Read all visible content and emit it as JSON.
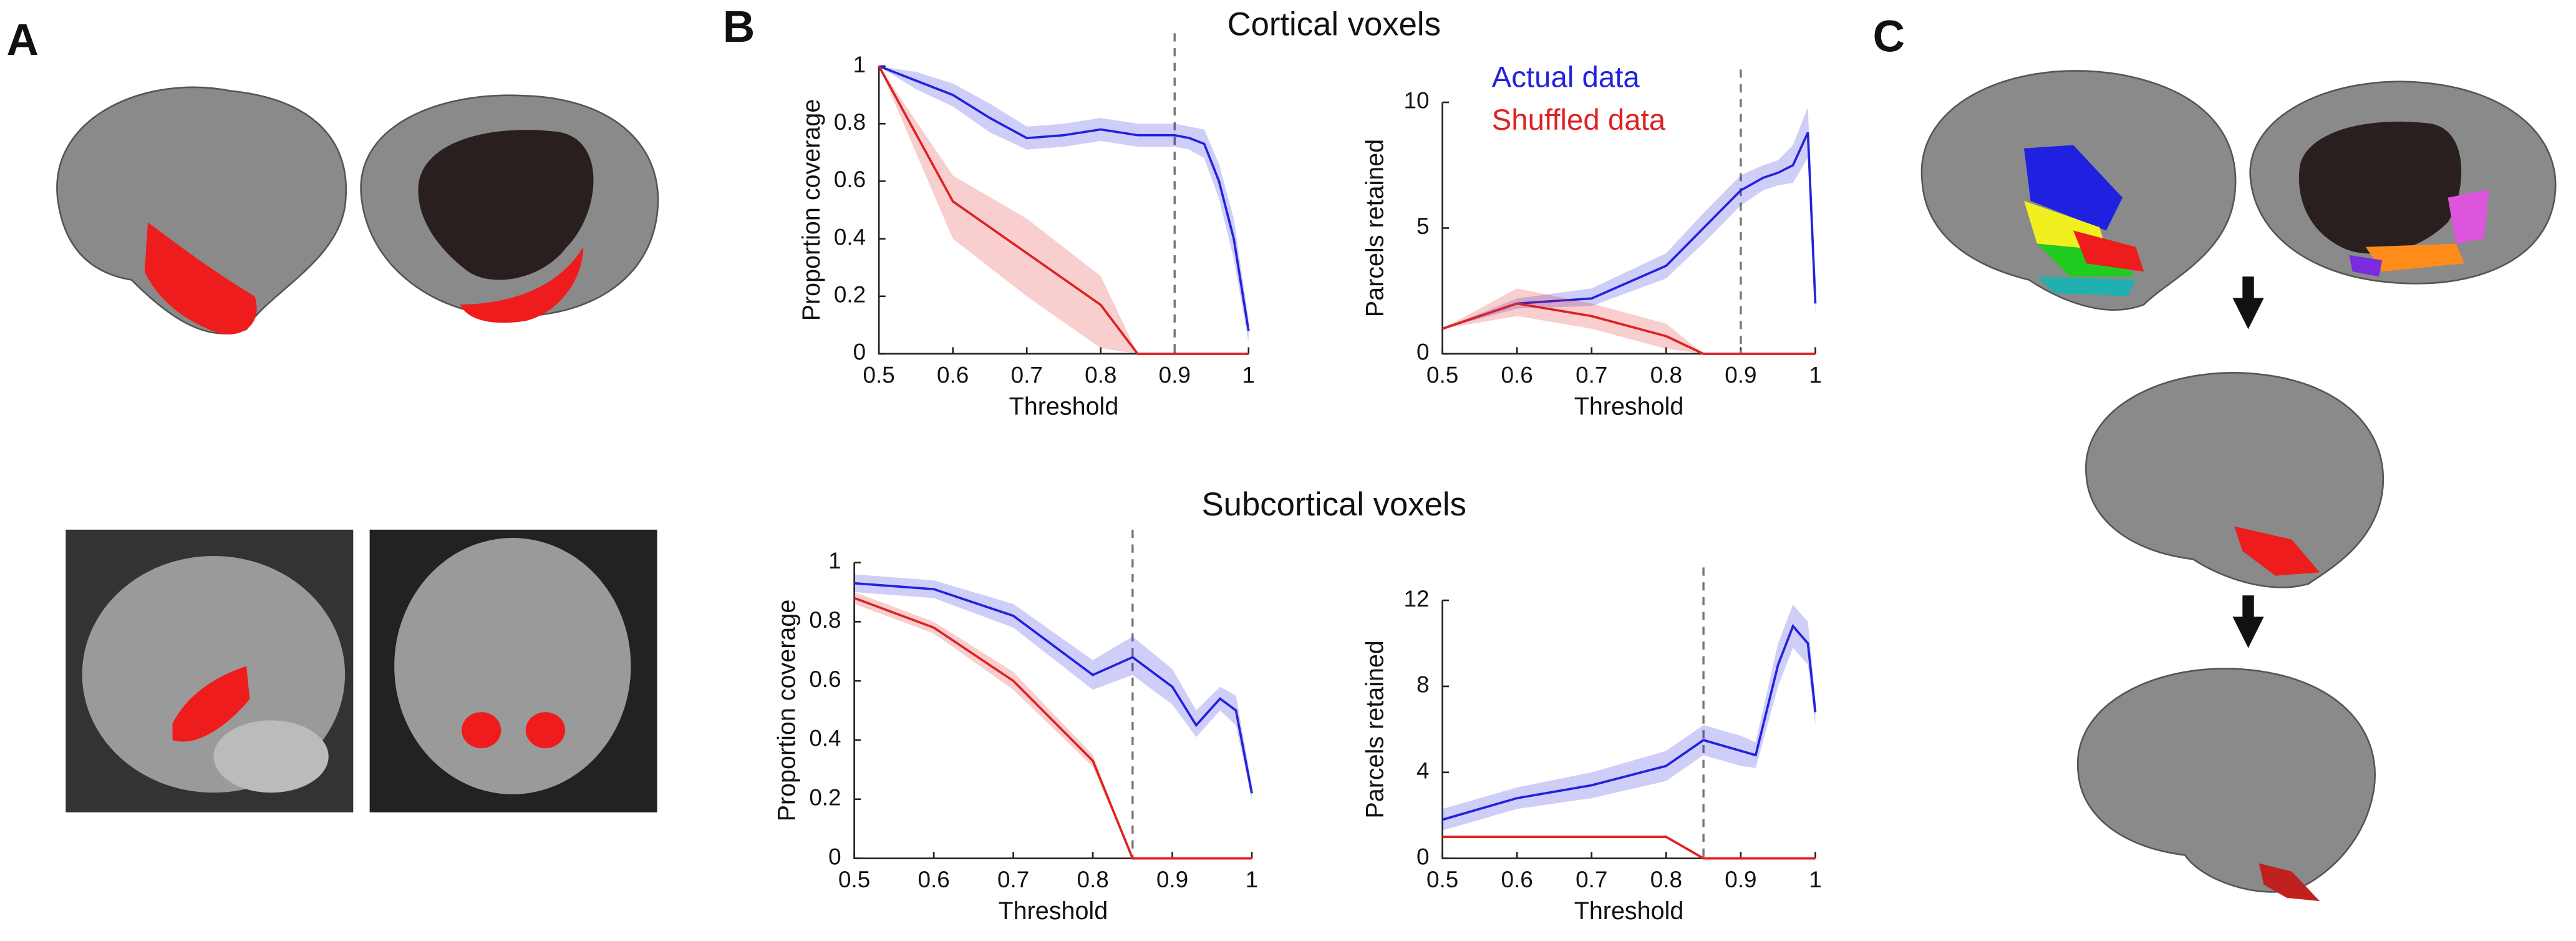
{
  "panels": [
    "A",
    "B",
    "C"
  ],
  "section_titles": [
    "Cortical voxels",
    "Subcortical voxels"
  ],
  "chart_data": [
    {
      "type": "line",
      "xlabel": "Threshold",
      "ylabel": "Proportion coverage",
      "xlim": [
        0.5,
        1
      ],
      "xticks": [
        0.5,
        0.6,
        0.7,
        0.8,
        0.9,
        1
      ],
      "ylim": [
        0,
        1
      ],
      "yticks": [
        0,
        0.2,
        0.4,
        0.6,
        0.8,
        1
      ],
      "threshold_line": 0.9,
      "series": [
        {
          "color": "#2222dd",
          "x": [
            0.5,
            0.55,
            0.6,
            0.65,
            0.7,
            0.75,
            0.8,
            0.85,
            0.9,
            0.92,
            0.94,
            0.96,
            0.98,
            1
          ],
          "values": [
            1,
            0.95,
            0.9,
            0.82,
            0.75,
            0.76,
            0.78,
            0.76,
            0.76,
            0.75,
            0.73,
            0.6,
            0.4,
            0.08
          ],
          "lower": [
            1,
            0.92,
            0.86,
            0.77,
            0.71,
            0.72,
            0.74,
            0.72,
            0.72,
            0.71,
            0.68,
            0.54,
            0.33,
            0.04
          ],
          "upper": [
            1,
            0.98,
            0.94,
            0.87,
            0.79,
            0.8,
            0.82,
            0.8,
            0.8,
            0.79,
            0.78,
            0.66,
            0.47,
            0.12
          ]
        },
        {
          "color": "#dd2222",
          "x": [
            0.5,
            0.6,
            0.7,
            0.8,
            0.85,
            0.9,
            1
          ],
          "values": [
            1,
            0.53,
            0.35,
            0.17,
            0,
            0,
            0
          ],
          "lower": [
            1,
            0.4,
            0.2,
            0.02,
            0,
            0,
            0
          ],
          "upper": [
            1,
            0.62,
            0.47,
            0.27,
            0,
            0,
            0
          ]
        }
      ]
    },
    {
      "type": "line",
      "xlabel": "Threshold",
      "ylabel": "Parcels retained",
      "legend": "upper left",
      "xlim": [
        0.5,
        1
      ],
      "xticks": [
        0.5,
        0.6,
        0.7,
        0.8,
        0.9,
        1
      ],
      "ylim": [
        0,
        10
      ],
      "yticks": [
        0,
        5,
        10
      ],
      "threshold_line": 0.9,
      "series": [
        {
          "name": "Actual data",
          "color": "#2222dd",
          "x": [
            0.5,
            0.6,
            0.7,
            0.8,
            0.85,
            0.9,
            0.93,
            0.95,
            0.97,
            0.99,
            1
          ],
          "values": [
            1,
            2,
            2.2,
            3.5,
            5,
            6.5,
            7,
            7.2,
            7.5,
            8.8,
            2
          ],
          "lower": [
            1,
            1.8,
            1.9,
            3,
            4.4,
            5.9,
            6.5,
            6.7,
            6.8,
            7.8,
            1.6
          ],
          "upper": [
            1,
            2.2,
            2.6,
            4,
            5.6,
            7.1,
            7.5,
            7.7,
            8.3,
            9.8,
            2.4
          ]
        },
        {
          "name": "Shuffled data",
          "color": "#dd2222",
          "x": [
            0.5,
            0.6,
            0.7,
            0.8,
            0.85,
            0.9,
            1
          ],
          "values": [
            1,
            2,
            1.5,
            0.7,
            0,
            0,
            0
          ],
          "lower": [
            1,
            1.5,
            1,
            0.2,
            0,
            0,
            0
          ],
          "upper": [
            1,
            2.6,
            2,
            1.2,
            0,
            0,
            0
          ]
        }
      ]
    },
    {
      "type": "line",
      "xlabel": "Threshold",
      "ylabel": "Proportion coverage",
      "xlim": [
        0.5,
        1
      ],
      "xticks": [
        0.5,
        0.6,
        0.7,
        0.8,
        0.9,
        1
      ],
      "ylim": [
        0,
        1
      ],
      "yticks": [
        0,
        0.2,
        0.4,
        0.6,
        0.8,
        1
      ],
      "threshold_line": 0.85,
      "series": [
        {
          "color": "#2222dd",
          "x": [
            0.5,
            0.6,
            0.7,
            0.8,
            0.85,
            0.9,
            0.93,
            0.96,
            0.98,
            1
          ],
          "values": [
            0.93,
            0.91,
            0.82,
            0.62,
            0.68,
            0.58,
            0.45,
            0.54,
            0.5,
            0.22
          ],
          "lower": [
            0.9,
            0.88,
            0.78,
            0.57,
            0.62,
            0.52,
            0.41,
            0.5,
            0.45,
            0.2
          ],
          "upper": [
            0.96,
            0.94,
            0.86,
            0.67,
            0.75,
            0.64,
            0.5,
            0.58,
            0.55,
            0.25
          ]
        },
        {
          "color": "#dd2222",
          "x": [
            0.5,
            0.6,
            0.7,
            0.8,
            0.85,
            0.9,
            1
          ],
          "values": [
            0.88,
            0.78,
            0.6,
            0.33,
            0,
            0,
            0
          ],
          "lower": [
            0.86,
            0.76,
            0.57,
            0.31,
            0,
            0,
            0
          ],
          "upper": [
            0.9,
            0.8,
            0.63,
            0.35,
            0,
            0,
            0
          ]
        }
      ]
    },
    {
      "type": "line",
      "xlabel": "Threshold",
      "ylabel": "Parcels retained",
      "xlim": [
        0.5,
        1
      ],
      "xticks": [
        0.5,
        0.6,
        0.7,
        0.8,
        0.9,
        1
      ],
      "ylim": [
        0,
        12
      ],
      "yticks": [
        0,
        4,
        8,
        12
      ],
      "threshold_line": 0.85,
      "series": [
        {
          "color": "#2222dd",
          "x": [
            0.5,
            0.6,
            0.7,
            0.8,
            0.85,
            0.9,
            0.92,
            0.95,
            0.97,
            0.99,
            1
          ],
          "values": [
            1.8,
            2.8,
            3.4,
            4.3,
            5.5,
            5,
            4.8,
            9,
            10.8,
            10,
            6.8
          ],
          "lower": [
            1.3,
            2.3,
            2.8,
            3.6,
            4.8,
            4.3,
            4.2,
            8,
            9.8,
            9,
            6.2
          ],
          "upper": [
            2.3,
            3.3,
            4,
            5,
            6.2,
            5.7,
            5.4,
            10,
            11.8,
            11,
            7.4
          ]
        },
        {
          "color": "#dd2222",
          "x": [
            0.5,
            0.8,
            0.85,
            0.9,
            1
          ],
          "values": [
            1,
            1,
            0,
            0,
            0
          ],
          "lower": [
            1,
            1,
            0,
            0,
            0
          ],
          "upper": [
            1,
            1,
            0,
            0,
            0
          ]
        }
      ]
    }
  ]
}
